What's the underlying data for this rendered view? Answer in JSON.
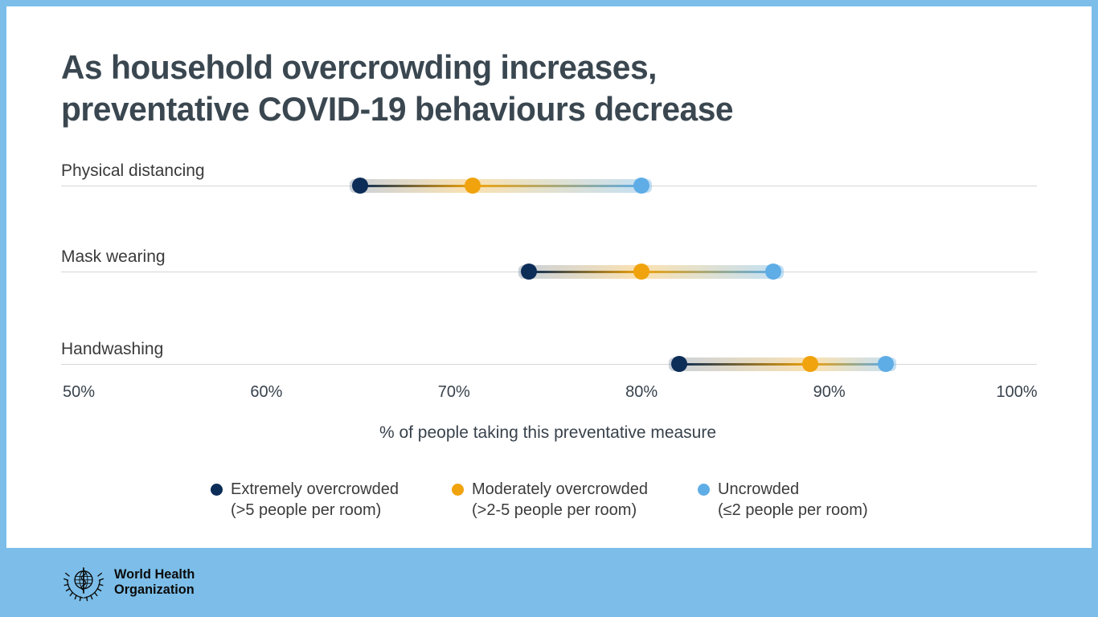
{
  "title": {
    "line1": "As household overcrowding increases,",
    "line2": "preventative COVID-19 behaviours decrease"
  },
  "chart_data": {
    "type": "scatter",
    "subtype": "dumbbell-dot-plot",
    "title": "As household overcrowding increases, preventative COVID-19 behaviours decrease",
    "categories": [
      "Physical distancing",
      "Mask wearing",
      "Handwashing"
    ],
    "series": [
      {
        "name": "Extremely overcrowded (>5 people per room)",
        "key": "extremely-overcrowded",
        "color": "#0C2D57",
        "values": [
          65,
          74,
          82
        ]
      },
      {
        "name": "Moderately overcrowded (>2-5 people per room)",
        "key": "moderately-overcrowded",
        "color": "#F0A30D",
        "values": [
          71,
          80,
          89
        ]
      },
      {
        "name": "Uncrowded (≤2 people per room)",
        "key": "uncrowded",
        "color": "#5FADE6",
        "values": [
          80,
          87,
          93
        ]
      }
    ],
    "xlabel": "% of people taking this preventative measure",
    "ylabel": "",
    "xlim": [
      50,
      100
    ],
    "x_ticks": [
      {
        "value": 50,
        "label": "50%"
      },
      {
        "value": 60,
        "label": "60%"
      },
      {
        "value": 70,
        "label": "70%"
      },
      {
        "value": 80,
        "label": "80%"
      },
      {
        "value": 90,
        "label": "90%"
      },
      {
        "value": 100,
        "label": "100%"
      }
    ],
    "grid": "category-baselines-only",
    "legend_position": "bottom"
  },
  "legend": {
    "items": [
      {
        "line1": "Extremely overcrowded",
        "line2": "(>5 people per room)",
        "color": "#0C2D57"
      },
      {
        "line1": "Moderately overcrowded",
        "line2": "(>2-5 people per room)",
        "color": "#F0A30D"
      },
      {
        "line1": "Uncrowded",
        "line2": "(≤2 people per room)",
        "color": "#5FADE6"
      }
    ]
  },
  "footer": {
    "org_name_line1": "World Health",
    "org_name_line2": "Organization"
  },
  "colors": {
    "frame_blue": "#7CBEE9",
    "baseline_gray": "#D6D6D6",
    "title_text": "#3A4750",
    "body_text": "#38424C"
  }
}
